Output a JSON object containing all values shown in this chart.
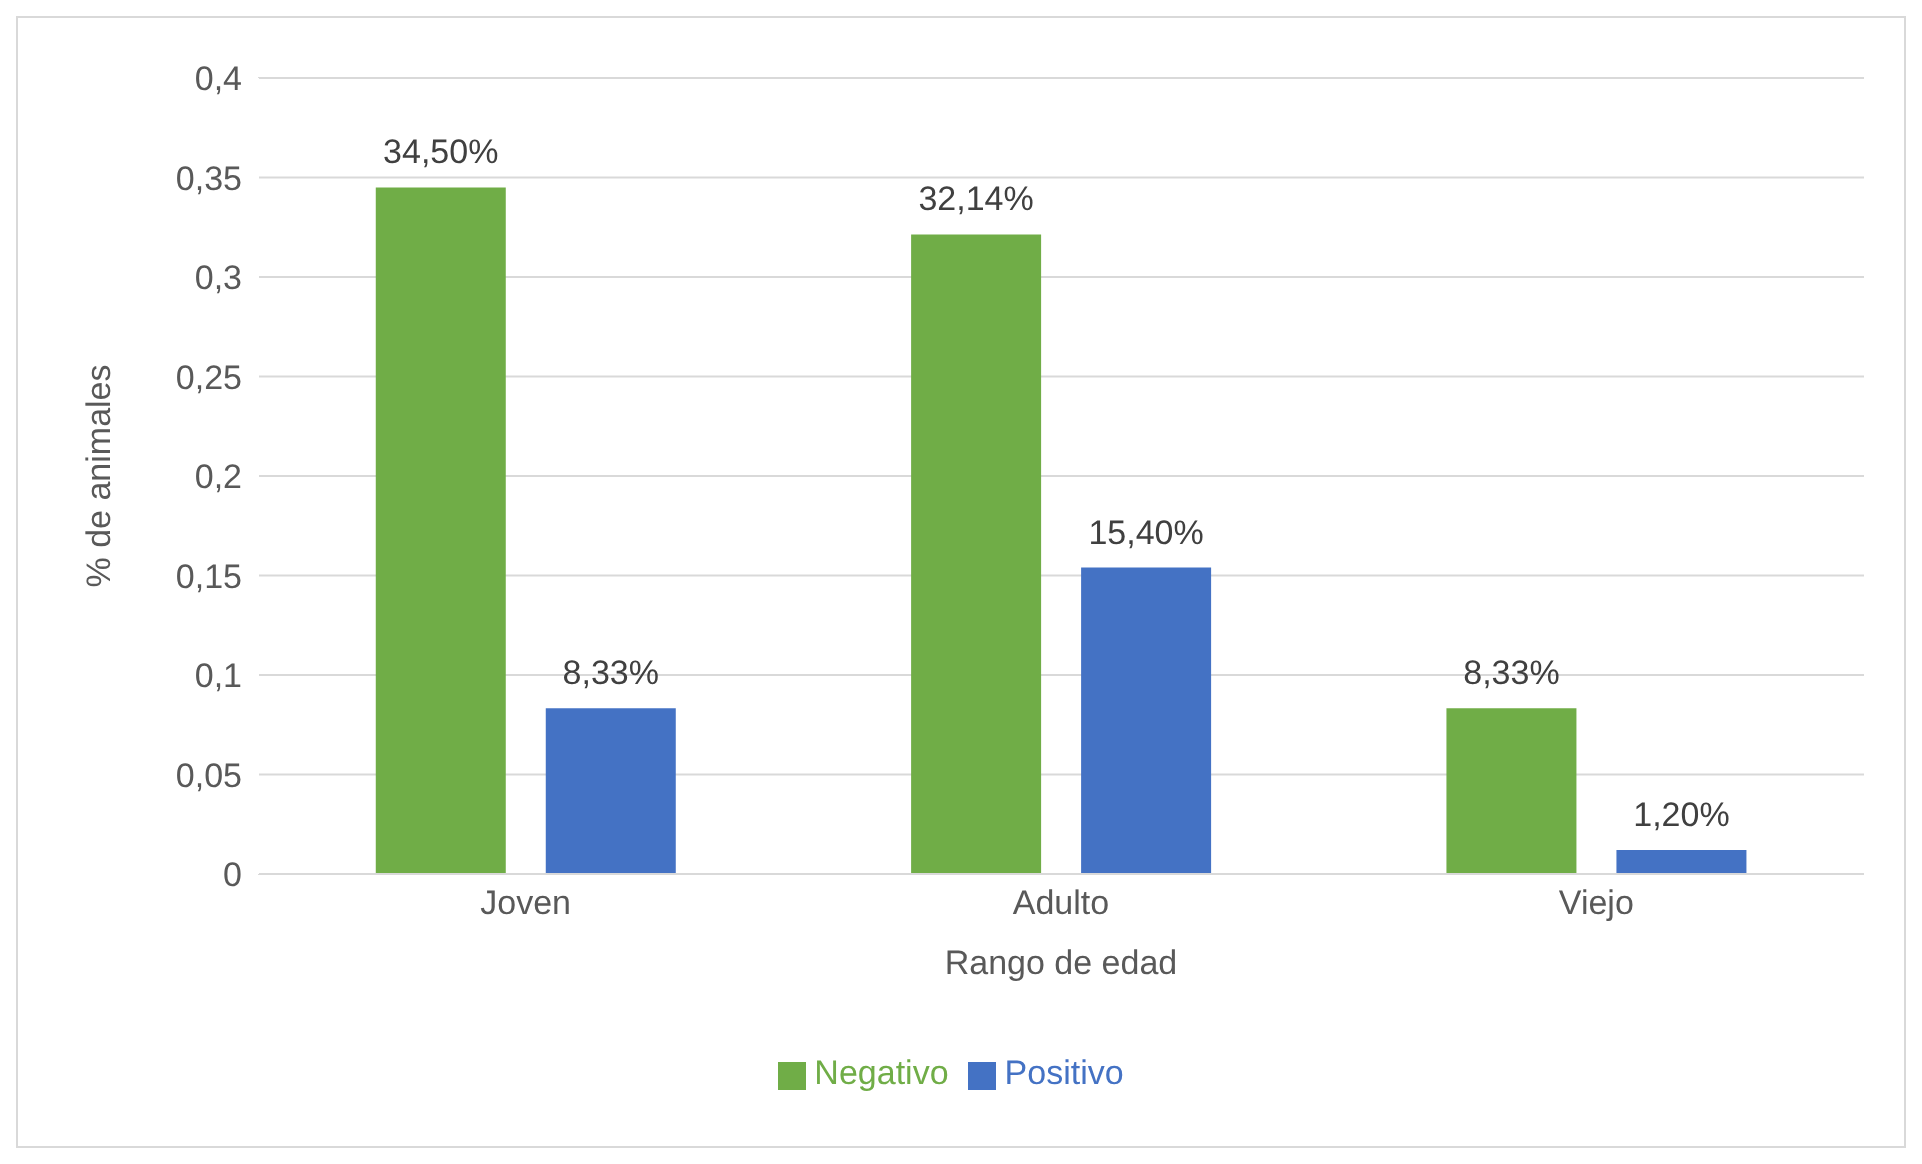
{
  "chart_data": {
    "type": "bar",
    "xlabel": "Rango de edad",
    "ylabel": "% de animales",
    "categories": [
      "Joven",
      "Adulto",
      "Viejo"
    ],
    "series": [
      {
        "name": "Negativo",
        "color": "#70ad47",
        "values": [
          0.345,
          0.3214,
          0.0833
        ],
        "value_labels": [
          "34,50%",
          "32,14%",
          "8,33%"
        ]
      },
      {
        "name": "Positivo",
        "color": "#4472c4",
        "values": [
          0.0833,
          0.154,
          0.012
        ],
        "value_labels": [
          "8,33%",
          "15,40%",
          "1,20%"
        ]
      }
    ],
    "ylim": [
      0,
      0.4
    ],
    "yticks": [
      0,
      {
        "value": 0.05,
        "label": "0,05"
      },
      {
        "value": 0.1,
        "label": "0,1"
      },
      {
        "value": 0.15,
        "label": "0,15"
      },
      {
        "value": 0.2,
        "label": "0,2"
      },
      {
        "value": 0.25,
        "label": "0,25"
      },
      {
        "value": 0.3,
        "label": "0,3"
      },
      {
        "value": 0.35,
        "label": "0,35"
      },
      {
        "value": 0.4,
        "label": "0,4"
      }
    ],
    "grid": "y",
    "legend": "bottom"
  }
}
